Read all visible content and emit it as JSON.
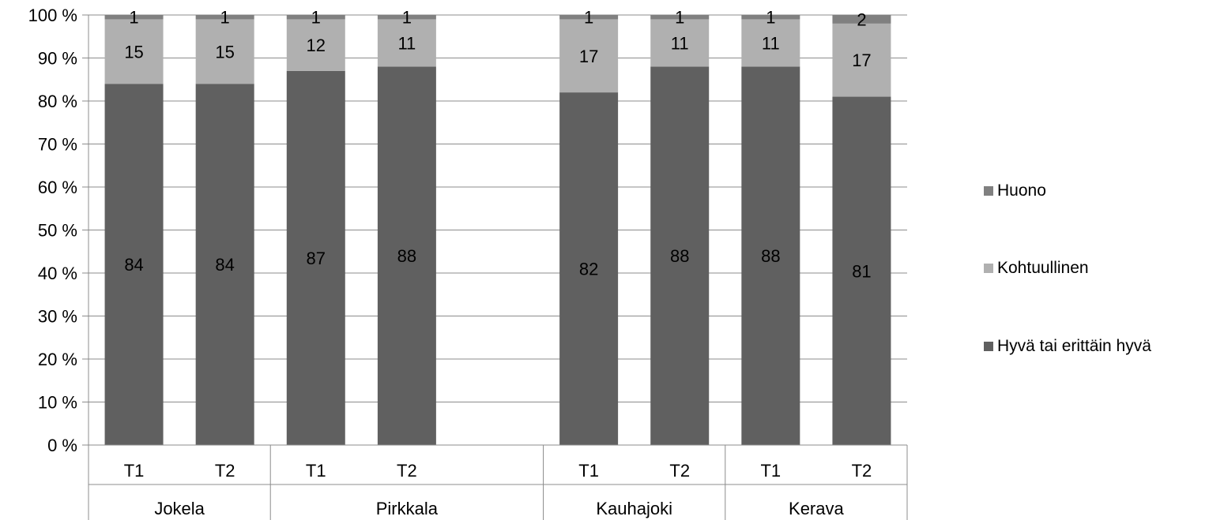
{
  "chart_data": {
    "type": "bar",
    "stacked": true,
    "percent_stacked": true,
    "title": "",
    "xlabel": "",
    "ylabel": "",
    "ylim": [
      0,
      100
    ],
    "y_ticks": [
      "0 %",
      "10 %",
      "20 %",
      "30 %",
      "40 %",
      "50 %",
      "60 %",
      "70 %",
      "80 %",
      "90 %",
      "100 %"
    ],
    "grid": true,
    "legend_position": "right",
    "groups": [
      {
        "label": "Jokela",
        "categories": [
          "T1",
          "T2"
        ]
      },
      {
        "label": "Pirkkala",
        "categories": [
          "T1",
          "T2",
          ""
        ]
      },
      {
        "label": "Kauhajoki",
        "categories": [
          "T1",
          "T2"
        ]
      },
      {
        "label": "Kerava",
        "categories": [
          "T1",
          "T2"
        ]
      }
    ],
    "categories": [
      "T1",
      "T2",
      "T1",
      "T2",
      "",
      "T1",
      "T2",
      "T1",
      "T2"
    ],
    "series": [
      {
        "name": "Hyvä tai erittäin hyvä",
        "color": "#606060",
        "values": [
          84,
          84,
          87,
          88,
          null,
          82,
          88,
          88,
          81
        ]
      },
      {
        "name": "Kohtuullinen",
        "color": "#b0b0b0",
        "values": [
          15,
          15,
          12,
          11,
          null,
          17,
          11,
          11,
          17
        ]
      },
      {
        "name": "Huono",
        "color": "#808080",
        "values": [
          1,
          1,
          1,
          1,
          null,
          1,
          1,
          1,
          2
        ]
      }
    ],
    "legend_order": [
      "Huono",
      "Kohtuullinen",
      "Hyvä tai erittäin hyvä"
    ]
  }
}
